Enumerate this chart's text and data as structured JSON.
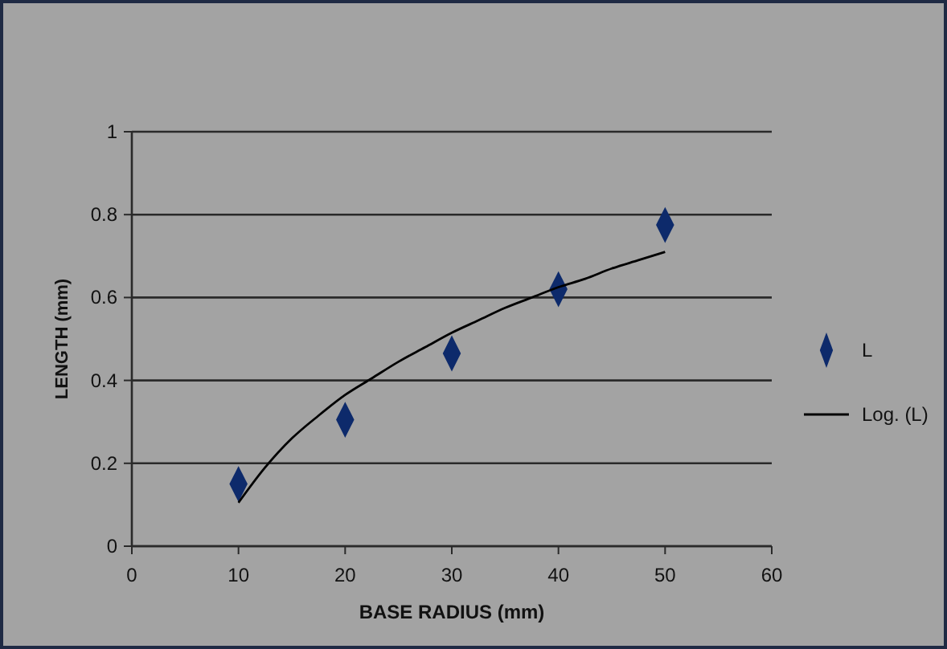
{
  "chart_data": {
    "type": "scatter",
    "xlabel": "BASE RADIUS (mm)",
    "ylabel": "LENGTH (mm)",
    "xlim": [
      0,
      60
    ],
    "xticks": [
      0,
      10,
      20,
      30,
      40,
      50,
      60
    ],
    "ylim": [
      0,
      1
    ],
    "yticks": [
      0,
      0.2,
      0.4,
      0.6,
      0.8,
      1
    ],
    "grid": "y",
    "legend": "right",
    "marker": "diamond",
    "series": [
      {
        "name": "L",
        "color": "#0d2a6b",
        "x": [
          10,
          20,
          30,
          40,
          50
        ],
        "values": [
          0.15,
          0.305,
          0.465,
          0.62,
          0.775
        ]
      },
      {
        "name": "Log. (L)",
        "type": "line",
        "color": "#000000",
        "line_style": "solid",
        "marker": "none",
        "x": [
          10,
          12.5,
          15,
          17.5,
          20,
          22.5,
          25,
          27.5,
          30,
          32.5,
          35,
          37.5,
          40,
          42.5,
          45,
          47.5,
          50
        ],
        "values": [
          0.105,
          0.19,
          0.26,
          0.315,
          0.365,
          0.405,
          0.445,
          0.48,
          0.515,
          0.545,
          0.575,
          0.6,
          0.625,
          0.645,
          0.67,
          0.69,
          0.71
        ]
      }
    ]
  }
}
